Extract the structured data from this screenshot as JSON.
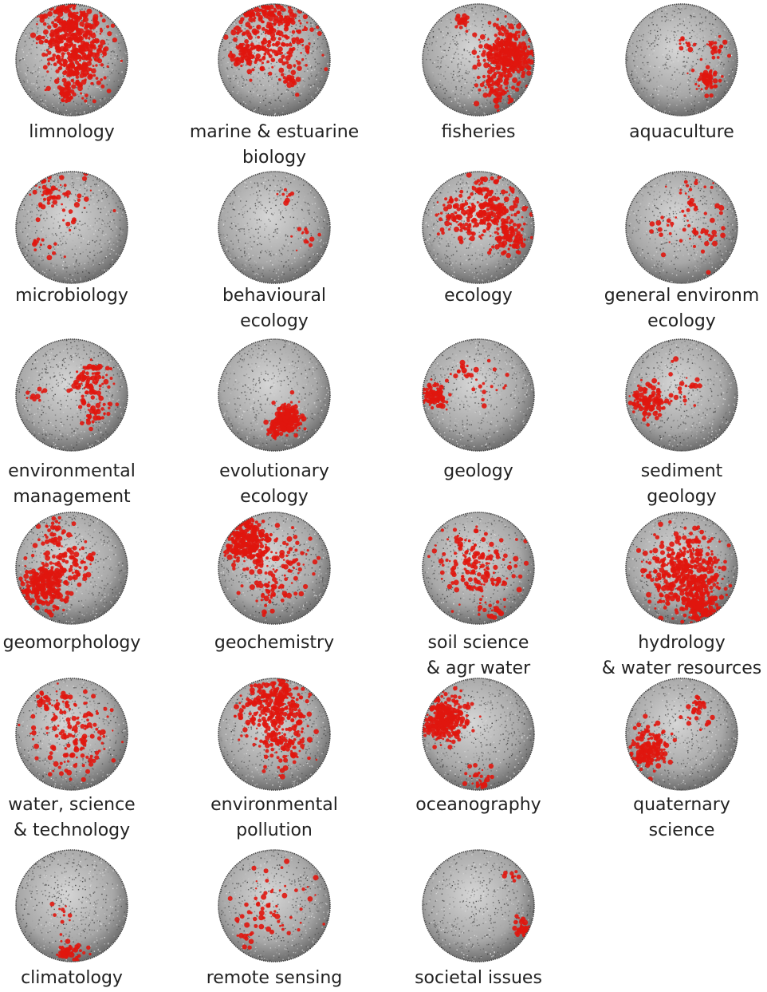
{
  "colors": {
    "highlight": "#e0160e",
    "sphere_base": "#9a9a9a",
    "sphere_rim": "#444444",
    "background": "#ffffff"
  },
  "panels": [
    {
      "label": [
        "limnology"
      ],
      "hotspots": "top-center dense"
    },
    {
      "label": [
        "marine & estuarine",
        "biology"
      ],
      "hotspots": "top band dense"
    },
    {
      "label": [
        "fisheries"
      ],
      "hotspots": "right dense"
    },
    {
      "label": [
        "aquaculture"
      ],
      "hotspots": "right sparse"
    },
    {
      "label": [
        "microbiology"
      ],
      "hotspots": "scattered sparse"
    },
    {
      "label": [
        "behavioural",
        "ecology"
      ],
      "hotspots": "very sparse"
    },
    {
      "label": [
        "ecology"
      ],
      "hotspots": "top-right medium"
    },
    {
      "label": [
        "general environm",
        "ecology"
      ],
      "hotspots": "scattered sparse"
    },
    {
      "label": [
        "environmental",
        "management"
      ],
      "hotspots": "scattered sparse"
    },
    {
      "label": [
        "evolutionary",
        "ecology"
      ],
      "hotspots": "lower-right streak"
    },
    {
      "label": [
        "geology"
      ],
      "hotspots": "left edge"
    },
    {
      "label": [
        "sediment",
        "geology"
      ],
      "hotspots": "left edge"
    },
    {
      "label": [
        "geomorphology"
      ],
      "hotspots": "lower-left dense"
    },
    {
      "label": [
        "geochemistry"
      ],
      "hotspots": "upper-left dense"
    },
    {
      "label": [
        "soil science",
        "& agr water"
      ],
      "hotspots": "scattered medium"
    },
    {
      "label": [
        "hydrology",
        "& water resources"
      ],
      "hotspots": "center-bottom dense"
    },
    {
      "label": [
        "water, science",
        "& technology"
      ],
      "hotspots": "scattered medium"
    },
    {
      "label": [
        "environmental",
        "pollution"
      ],
      "hotspots": "top band dense"
    },
    {
      "label": [
        "oceanography"
      ],
      "hotspots": "upper-left dense"
    },
    {
      "label": [
        "quaternary",
        "science"
      ],
      "hotspots": "left medium"
    },
    {
      "label": [
        "climatology"
      ],
      "hotspots": "bottom sparse"
    },
    {
      "label": [
        "remote sensing"
      ],
      "hotspots": "scattered sparse"
    },
    {
      "label": [
        "societal issues"
      ],
      "hotspots": "right edge sparse"
    }
  ]
}
